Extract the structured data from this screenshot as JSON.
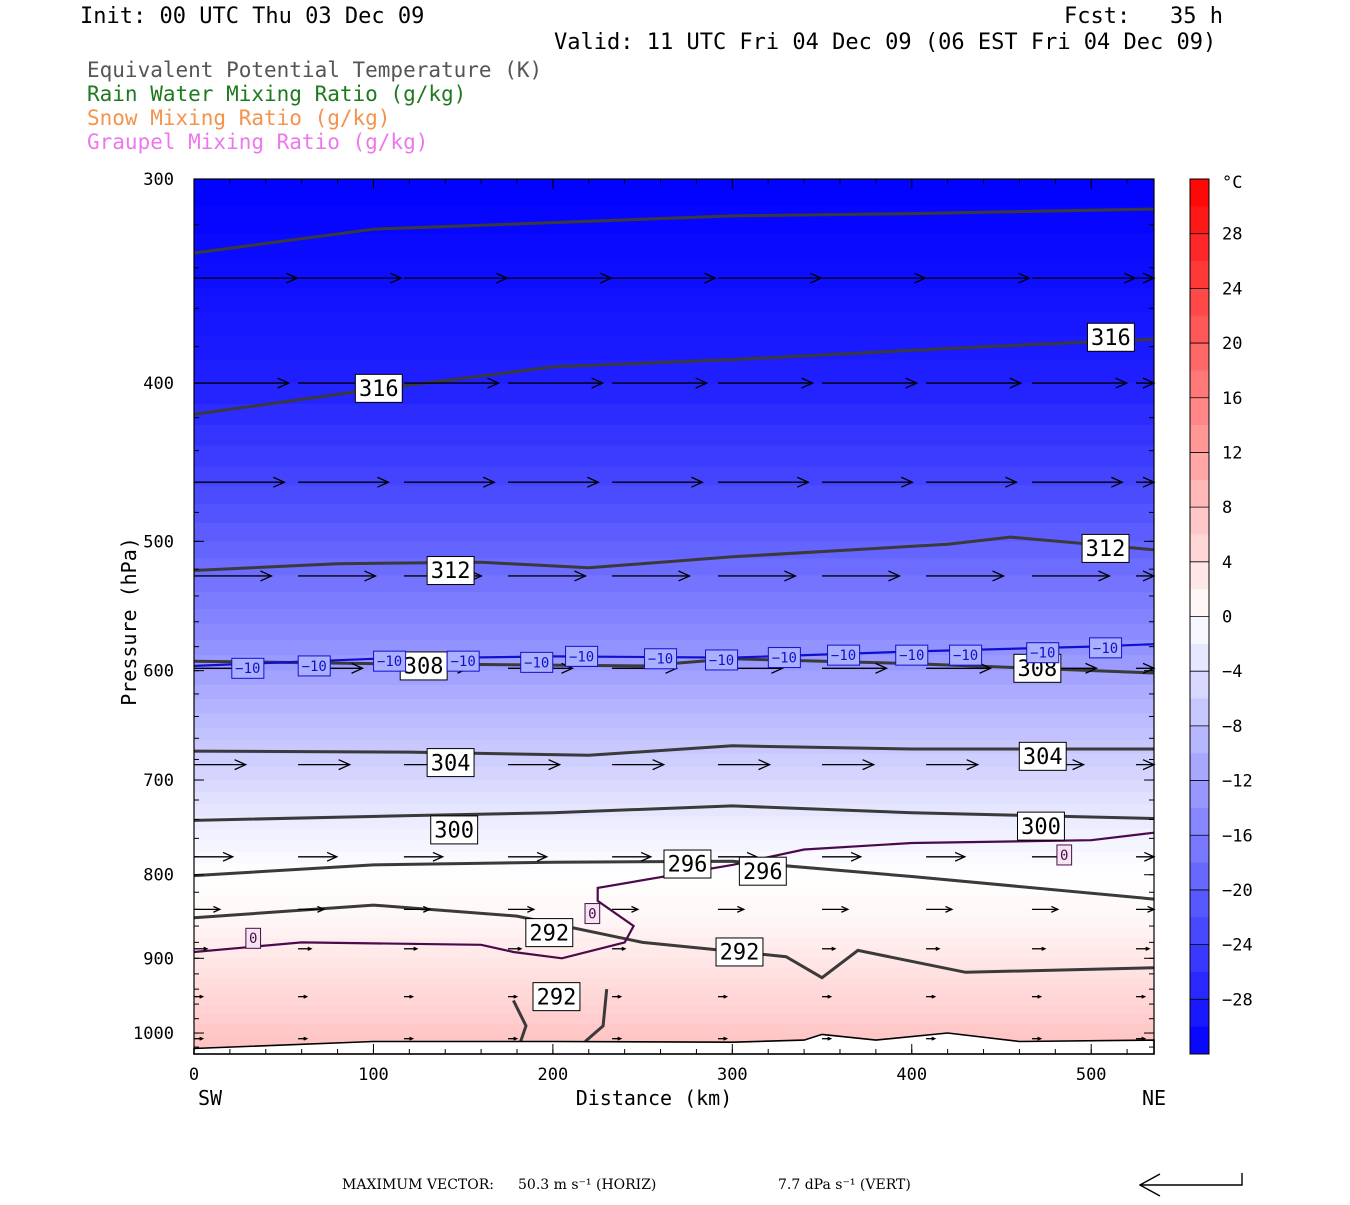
{
  "header": {
    "init": "Init: 00 UTC Thu 03 Dec 09",
    "fcst": "Fcst:   35 h",
    "valid": "Valid: 11 UTC Fri 04 Dec 09 (06 EST Fri 04 Dec 09)"
  },
  "fields": [
    {
      "label": "Equivalent Potential Temperature (K)",
      "color": "#555555"
    },
    {
      "label": "Rain Water Mixing Ratio (g/kg)",
      "color": "#1d7a1d"
    },
    {
      "label": "Snow Mixing Ratio (g/kg)",
      "color": "#f4934c"
    },
    {
      "label": "Graupel Mixing Ratio (g/kg)",
      "color": "#ee77ee"
    }
  ],
  "footer": {
    "max_vector_label": "MAXIMUM VECTOR:",
    "horiz": "50.3 m s⁻¹ (HORIZ)",
    "vert": "7.7 dPa s⁻¹ (VERT)"
  },
  "chart_data": {
    "type": "heatmap",
    "xlabel": "Distance (km)",
    "ylabel": "Pressure (hPa)",
    "xlim": [
      0,
      535
    ],
    "ylim": [
      1030,
      300
    ],
    "y_scale": "log",
    "x_ticks": [
      0,
      100,
      200,
      300,
      400,
      500
    ],
    "y_ticks": [
      300,
      400,
      500,
      600,
      700,
      800,
      900,
      1000
    ],
    "x_end_labels": {
      "left": "SW",
      "right": "NE"
    },
    "colorbar": {
      "unit": "°C",
      "ticks": [
        28,
        24,
        20,
        16,
        12,
        8,
        4,
        0,
        -4,
        -8,
        -12,
        -16,
        -20,
        -24,
        -28
      ],
      "min": -32,
      "max": 32,
      "step": 2,
      "cold_color": "#0000ff",
      "neutral_color": "#ffffff",
      "warm_color": "#ff0000"
    },
    "temperature_bands": [
      {
        "p": 300,
        "t": -32
      },
      {
        "p": 350,
        "t": -30
      },
      {
        "p": 400,
        "t": -28
      },
      {
        "p": 450,
        "t": -24
      },
      {
        "p": 500,
        "t": -20
      },
      {
        "p": 550,
        "t": -16
      },
      {
        "p": 600,
        "t": -12
      },
      {
        "p": 650,
        "t": -8
      },
      {
        "p": 700,
        "t": -5
      },
      {
        "p": 750,
        "t": -2
      },
      {
        "p": 800,
        "t": 0
      },
      {
        "p": 850,
        "t": 1
      },
      {
        "p": 900,
        "t": 3
      },
      {
        "p": 950,
        "t": 5
      },
      {
        "p": 1000,
        "t": 7
      },
      {
        "p": 1030,
        "t": 8
      }
    ],
    "theta_e_contours": [
      {
        "value": 316,
        "points": [
          [
            0,
            333
          ],
          [
            100,
            322
          ],
          [
            200,
            319
          ],
          [
            300,
            316
          ],
          [
            400,
            315
          ],
          [
            535,
            313
          ]
        ]
      },
      {
        "value": 316,
        "points": [
          [
            0,
            418
          ],
          [
            90,
            405
          ],
          [
            200,
            391
          ],
          [
            300,
            387
          ],
          [
            440,
            380
          ],
          [
            535,
            376
          ]
        ]
      },
      {
        "value": 312,
        "points": [
          [
            0,
            521
          ],
          [
            80,
            516
          ],
          [
            160,
            515
          ],
          [
            220,
            519
          ],
          [
            300,
            511
          ],
          [
            420,
            502
          ],
          [
            455,
            497
          ],
          [
            535,
            506
          ]
        ]
      },
      {
        "value": 308,
        "points": [
          [
            0,
            592
          ],
          [
            100,
            594
          ],
          [
            250,
            596
          ],
          [
            300,
            590
          ],
          [
            400,
            594
          ],
          [
            535,
            602
          ]
        ]
      },
      {
        "value": 304,
        "points": [
          [
            0,
            672
          ],
          [
            120,
            673
          ],
          [
            220,
            676
          ],
          [
            300,
            667
          ],
          [
            400,
            670
          ],
          [
            535,
            670
          ]
        ]
      },
      {
        "value": 300,
        "points": [
          [
            0,
            741
          ],
          [
            120,
            736
          ],
          [
            200,
            733
          ],
          [
            300,
            726
          ],
          [
            400,
            733
          ],
          [
            535,
            739
          ]
        ]
      },
      {
        "value": 296,
        "points": [
          [
            0,
            801
          ],
          [
            100,
            789
          ],
          [
            200,
            786
          ],
          [
            300,
            785
          ],
          [
            400,
            802
          ],
          [
            535,
            828
          ]
        ]
      },
      {
        "value": 292,
        "points": [
          [
            0,
            850
          ],
          [
            100,
            835
          ],
          [
            180,
            848
          ],
          [
            250,
            880
          ],
          [
            330,
            898
          ],
          [
            350,
            925
          ],
          [
            370,
            890
          ],
          [
            430,
            918
          ],
          [
            535,
            912
          ]
        ]
      },
      {
        "value": 292,
        "points": [
          [
            178,
            955
          ],
          [
            185,
            990
          ],
          [
            182,
            1012
          ]
        ]
      },
      {
        "value": 292,
        "points": [
          [
            230,
            940
          ],
          [
            228,
            990
          ],
          [
            218,
            1012
          ]
        ]
      }
    ],
    "zero_isotherm": [
      [
        0,
        892
      ],
      [
        60,
        880
      ],
      [
        160,
        883
      ],
      [
        178,
        892
      ],
      [
        205,
        900
      ],
      [
        240,
        880
      ],
      [
        245,
        860
      ],
      [
        225,
        830
      ],
      [
        225,
        815
      ],
      [
        300,
        789
      ],
      [
        340,
        772
      ],
      [
        400,
        765
      ],
      [
        500,
        762
      ],
      [
        535,
        754
      ]
    ],
    "minus10_isotherm": [
      [
        0,
        596
      ],
      [
        100,
        590
      ],
      [
        200,
        588
      ],
      [
        300,
        589
      ],
      [
        400,
        584
      ],
      [
        500,
        580
      ],
      [
        535,
        578
      ]
    ],
    "contour_labels": [
      {
        "text": "316",
        "x": 103,
        "p": 403
      },
      {
        "text": "316",
        "x": 511,
        "p": 375
      },
      {
        "text": "312",
        "x": 143,
        "p": 521
      },
      {
        "text": "312",
        "x": 508,
        "p": 505
      },
      {
        "text": "308",
        "x": 128,
        "p": 596
      },
      {
        "text": "308",
        "x": 470,
        "p": 598
      },
      {
        "text": "304",
        "x": 143,
        "p": 683
      },
      {
        "text": "304",
        "x": 473,
        "p": 677
      },
      {
        "text": "300",
        "x": 145,
        "p": 751
      },
      {
        "text": "300",
        "x": 472,
        "p": 747
      },
      {
        "text": "296",
        "x": 275,
        "p": 788
      },
      {
        "text": "296",
        "x": 317,
        "p": 796
      },
      {
        "text": "292",
        "x": 198,
        "p": 868
      },
      {
        "text": "292",
        "x": 304,
        "p": 892
      },
      {
        "text": "292",
        "x": 202,
        "p": 950
      }
    ],
    "zero_labels": [
      {
        "text": "0",
        "x": 33,
        "p": 875
      },
      {
        "text": "0",
        "x": 222,
        "p": 845
      },
      {
        "text": "0",
        "x": 485,
        "p": 778
      }
    ],
    "minus10_labels": [
      {
        "text": "−10",
        "x": 30,
        "p": 598
      },
      {
        "text": "−10",
        "x": 67,
        "p": 596
      },
      {
        "text": "−10",
        "x": 109,
        "p": 592
      },
      {
        "text": "−10",
        "x": 150,
        "p": 592
      },
      {
        "text": "−10",
        "x": 191,
        "p": 593
      },
      {
        "text": "−10",
        "x": 216,
        "p": 588
      },
      {
        "text": "−10",
        "x": 260,
        "p": 590
      },
      {
        "text": "−10",
        "x": 294,
        "p": 591
      },
      {
        "text": "−10",
        "x": 329,
        "p": 589
      },
      {
        "text": "−10",
        "x": 362,
        "p": 587
      },
      {
        "text": "−10",
        "x": 400,
        "p": 587
      },
      {
        "text": "−10",
        "x": 430,
        "p": 587
      },
      {
        "text": "−10",
        "x": 473,
        "p": 585
      },
      {
        "text": "−10",
        "x": 508,
        "p": 581
      }
    ],
    "wind_vectors": [
      {
        "p": 345,
        "u": 24,
        "v": 0,
        "xs": [
          0,
          58,
          117,
          175,
          233,
          292,
          350,
          408,
          467,
          525
        ]
      },
      {
        "p": 400,
        "u": 22,
        "v": 0,
        "xs": [
          0,
          58,
          117,
          175,
          233,
          292,
          350,
          408,
          467,
          525
        ]
      },
      {
        "p": 460,
        "u": 21,
        "v": 0,
        "xs": [
          0,
          58,
          117,
          175,
          233,
          292,
          350,
          408,
          467,
          525
        ]
      },
      {
        "p": 525,
        "u": 18,
        "v": 0,
        "xs": [
          0,
          58,
          117,
          175,
          233,
          292,
          350,
          408,
          467,
          525
        ]
      },
      {
        "p": 598,
        "u": 15,
        "v": 0,
        "xs": [
          0,
          58,
          117,
          175,
          233,
          292,
          350,
          408,
          467,
          525
        ]
      },
      {
        "p": 685,
        "u": 12,
        "v": 0,
        "xs": [
          0,
          58,
          117,
          175,
          233,
          292,
          350,
          408,
          467,
          525
        ]
      },
      {
        "p": 780,
        "u": 9,
        "v": 0,
        "xs": [
          0,
          58,
          117,
          175,
          233,
          292,
          350,
          408,
          467,
          525
        ]
      },
      {
        "p": 840,
        "u": 6,
        "v": 0,
        "xs": [
          0,
          58,
          117,
          175,
          233,
          292,
          350,
          408,
          467,
          525
        ]
      },
      {
        "p": 888,
        "u": 3,
        "v": 0,
        "xs": [
          0,
          58,
          117,
          175,
          233,
          292,
          350,
          408,
          467,
          525
        ]
      },
      {
        "p": 950,
        "u": 2,
        "v": 0,
        "xs": [
          0,
          58,
          117,
          175,
          233,
          292,
          350,
          408,
          467,
          525
        ]
      },
      {
        "p": 1008,
        "u": 2,
        "v": 0,
        "xs": [
          0,
          58,
          117,
          175,
          233,
          292,
          350,
          408,
          467,
          525
        ]
      }
    ],
    "terrain": [
      [
        0,
        1022
      ],
      [
        100,
        1012
      ],
      [
        200,
        1012
      ],
      [
        300,
        1013
      ],
      [
        340,
        1010
      ],
      [
        350,
        1002
      ],
      [
        380,
        1010
      ],
      [
        420,
        1000
      ],
      [
        460,
        1012
      ],
      [
        535,
        1010
      ]
    ]
  }
}
